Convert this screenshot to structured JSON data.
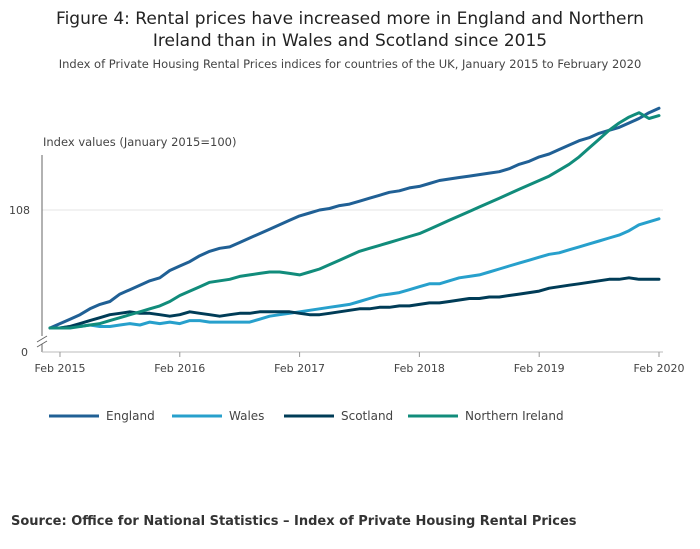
{
  "title_line1": "Figure 4: Rental prices have increased more in England and Northern",
  "title_line2": "Ireland than in Wales and Scotland since 2015",
  "subtitle": "Index of Private Housing Rental Prices indices for countries of the UK, January 2015 to February 2020",
  "source": "Source: Office for National Statistics – Index of Private Housing Rental Prices",
  "colors": {
    "England": "#206095",
    "Wales": "#27a0cc",
    "Scotland": "#003c57",
    "Northern Ireland": "#118c7b",
    "grid": "#e6e6e6",
    "axis": "#666666"
  },
  "chart_data": {
    "type": "line",
    "title": "Figure 4: Rental prices have increased more in England and Northern Ireland than in Wales and Scotland since 2015",
    "subtitle": "Index of Private Housing Rental Prices indices for countries of the UK, January 2015 to February 2020",
    "ylabel": "Index values (January 2015=100)",
    "y_ticks": [
      "0",
      "108"
    ],
    "x_ticks": [
      "Feb 2015",
      "Feb 2016",
      "Feb 2017",
      "Feb 2018",
      "Feb 2019",
      "Feb 2020"
    ],
    "y_axis_broken": true,
    "legend_position": "bottom",
    "x": [
      "Jan 2015",
      "Feb 2015",
      "Mar 2015",
      "Apr 2015",
      "May 2015",
      "Jun 2015",
      "Jul 2015",
      "Aug 2015",
      "Sep 2015",
      "Oct 2015",
      "Nov 2015",
      "Dec 2015",
      "Jan 2016",
      "Feb 2016",
      "Mar 2016",
      "Apr 2016",
      "May 2016",
      "Jun 2016",
      "Jul 2016",
      "Aug 2016",
      "Sep 2016",
      "Oct 2016",
      "Nov 2016",
      "Dec 2016",
      "Jan 2017",
      "Feb 2017",
      "Mar 2017",
      "Apr 2017",
      "May 2017",
      "Jun 2017",
      "Jul 2017",
      "Aug 2017",
      "Sep 2017",
      "Oct 2017",
      "Nov 2017",
      "Dec 2017",
      "Jan 2018",
      "Feb 2018",
      "Mar 2018",
      "Apr 2018",
      "May 2018",
      "Jun 2018",
      "Jul 2018",
      "Aug 2018",
      "Sep 2018",
      "Oct 2018",
      "Nov 2018",
      "Dec 2018",
      "Jan 2019",
      "Feb 2019",
      "Mar 2019",
      "Apr 2019",
      "May 2019",
      "Jun 2019",
      "Jul 2019",
      "Aug 2019",
      "Sep 2019",
      "Oct 2019",
      "Nov 2019",
      "Dec 2019",
      "Jan 2020",
      "Feb 2020"
    ],
    "series": [
      {
        "name": "England",
        "values": [
          100,
          100.3,
          100.6,
          100.9,
          101.3,
          101.6,
          101.8,
          102.3,
          102.6,
          102.9,
          103.2,
          103.4,
          103.9,
          104.2,
          104.5,
          104.9,
          105.2,
          105.4,
          105.5,
          105.8,
          106.1,
          106.4,
          106.7,
          107.0,
          107.3,
          107.6,
          107.8,
          108.0,
          108.1,
          108.3,
          108.4,
          108.6,
          108.8,
          109.0,
          109.2,
          109.3,
          109.5,
          109.6,
          109.8,
          110.0,
          110.1,
          110.2,
          110.3,
          110.4,
          110.5,
          110.6,
          110.8,
          111.1,
          111.3,
          111.6,
          111.8,
          112.1,
          112.4,
          112.7,
          112.9,
          113.2,
          113.4,
          113.6,
          113.9,
          114.2,
          114.6,
          114.9
        ]
      },
      {
        "name": "Wales",
        "values": [
          100,
          100.0,
          100.1,
          100.1,
          100.2,
          100.1,
          100.1,
          100.2,
          100.3,
          100.2,
          100.4,
          100.3,
          100.4,
          100.3,
          100.5,
          100.5,
          100.4,
          100.4,
          100.4,
          100.4,
          100.4,
          100.6,
          100.8,
          100.9,
          101.0,
          101.1,
          101.2,
          101.3,
          101.4,
          101.5,
          101.6,
          101.8,
          102.0,
          102.2,
          102.3,
          102.4,
          102.6,
          102.8,
          103.0,
          103.0,
          103.2,
          103.4,
          103.5,
          103.6,
          103.8,
          104.0,
          104.2,
          104.4,
          104.6,
          104.8,
          105.0,
          105.1,
          105.3,
          105.5,
          105.7,
          105.9,
          106.1,
          106.3,
          106.6,
          107.0,
          107.2,
          107.4
        ]
      },
      {
        "name": "Scotland",
        "values": [
          100,
          100.0,
          100.1,
          100.3,
          100.5,
          100.7,
          100.9,
          101.0,
          101.1,
          101.0,
          101.0,
          100.9,
          100.8,
          100.9,
          101.1,
          101.0,
          100.9,
          100.8,
          100.9,
          101.0,
          101.0,
          101.1,
          101.1,
          101.1,
          101.1,
          101.0,
          100.9,
          100.9,
          101.0,
          101.1,
          101.2,
          101.3,
          101.3,
          101.4,
          101.4,
          101.5,
          101.5,
          101.6,
          101.7,
          101.7,
          101.8,
          101.9,
          102.0,
          102.0,
          102.1,
          102.1,
          102.2,
          102.3,
          102.4,
          102.5,
          102.7,
          102.8,
          102.9,
          103.0,
          103.1,
          103.2,
          103.3,
          103.3,
          103.4,
          103.3,
          103.3,
          103.3
        ]
      },
      {
        "name": "Northern Ireland",
        "values": [
          100,
          100.0,
          100.0,
          100.1,
          100.2,
          100.3,
          100.5,
          100.7,
          100.9,
          101.1,
          101.3,
          101.5,
          101.8,
          102.2,
          102.5,
          102.8,
          103.1,
          103.2,
          103.3,
          103.5,
          103.6,
          103.7,
          103.8,
          103.8,
          103.7,
          103.6,
          103.8,
          104.0,
          104.3,
          104.6,
          104.9,
          105.2,
          105.4,
          105.6,
          105.8,
          106.0,
          106.2,
          106.4,
          106.7,
          107.0,
          107.3,
          107.6,
          107.9,
          108.2,
          108.5,
          108.8,
          109.1,
          109.4,
          109.7,
          110.0,
          110.3,
          110.7,
          111.1,
          111.6,
          112.2,
          112.8,
          113.4,
          113.9,
          114.3,
          114.6,
          114.2,
          114.4
        ]
      }
    ]
  }
}
